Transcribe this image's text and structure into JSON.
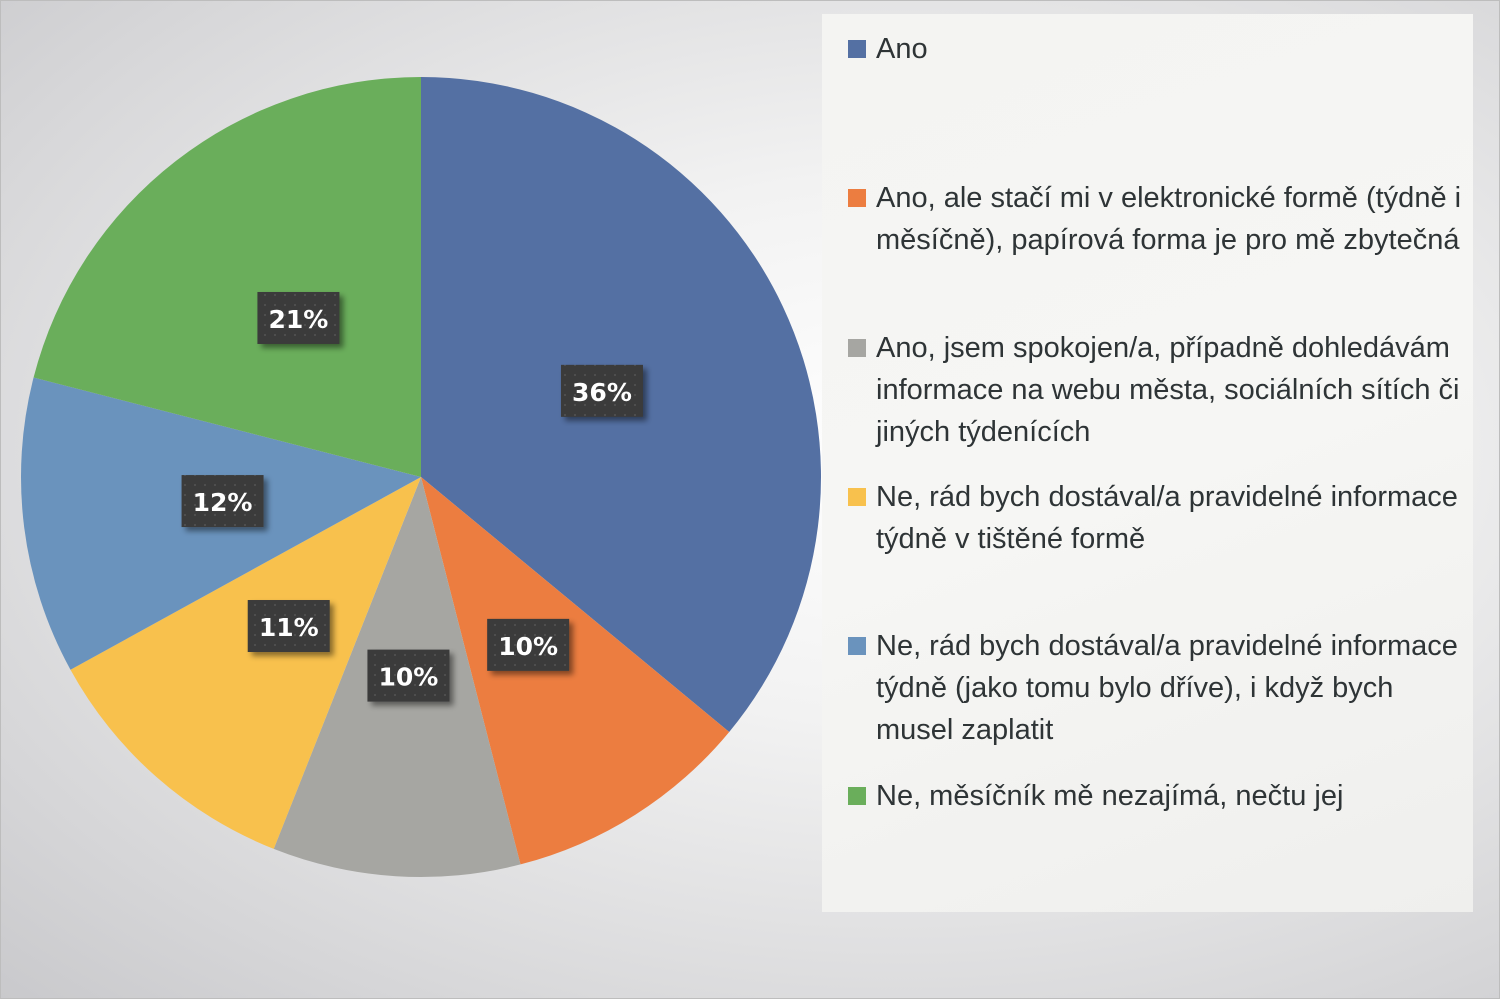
{
  "chart_data": {
    "type": "pie",
    "title": "",
    "start": "top",
    "direction": "clockwise",
    "legend_position": "right",
    "slices": [
      {
        "label": "Ano",
        "value": 36,
        "data_label": "36%",
        "color": "#5470a3"
      },
      {
        "label": "Ano, ale stačí mi v elektronické formě (týdně i měsíčně), papírová forma je pro mě zbytečná",
        "value": 10,
        "data_label": "10%",
        "color": "#ec7d40"
      },
      {
        "label": "Ano, jsem spokojen/a, případně dohledávám informace na webu města, sociálních sítích či jiných týdenících",
        "value": 10,
        "data_label": "10%",
        "color": "#a6a6a2"
      },
      {
        "label": "Ne, rád bych dostával/a pravidelné informace týdně v tištěné formě",
        "value": 11,
        "data_label": "11%",
        "color": "#f8c14d"
      },
      {
        "label": "Ne, rád bych dostával/a pravidelné informace týdně (jako tomu bylo dříve), i když bych musel zaplatit",
        "value": 12,
        "data_label": "12%",
        "color": "#6a93bd"
      },
      {
        "label": "Ne, měsíčník mě nezajímá, nečtu jej",
        "value": 21,
        "data_label": "21%",
        "color": "#6aae5b"
      }
    ]
  }
}
